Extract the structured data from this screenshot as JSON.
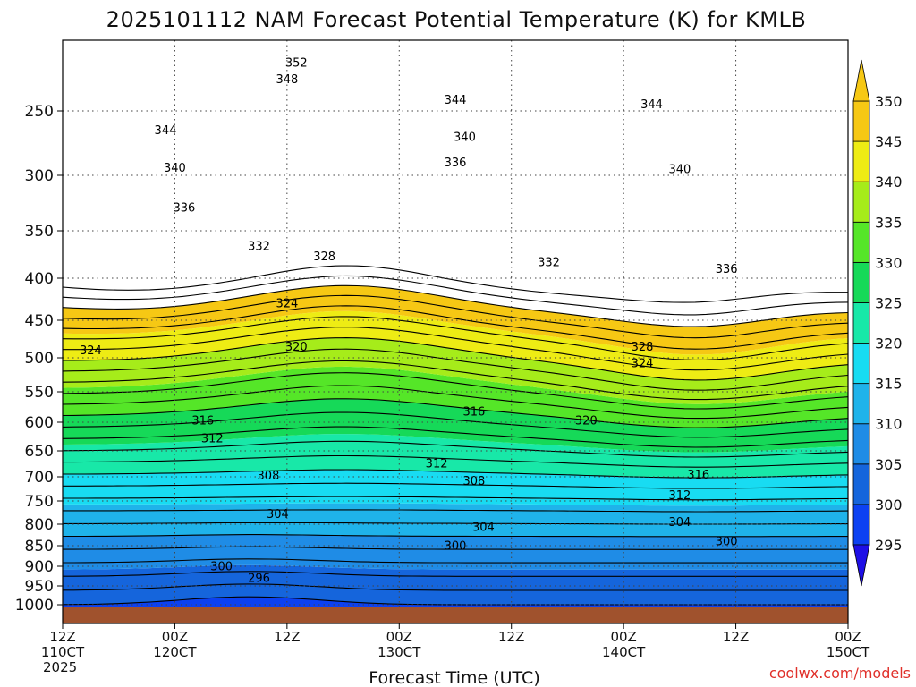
{
  "chart_data": {
    "type": "heatmap",
    "title": "2025101112 NAM Forecast Potential Temperature (K) for KMLB",
    "xlabel": "Forecast Time (UTC)",
    "ylabel": "",
    "credit": "coolwx.com/models",
    "x_ticks": [
      {
        "hours": 0,
        "lines": [
          "12Z",
          "110CT",
          "2025"
        ]
      },
      {
        "hours": 12,
        "lines": [
          "00Z",
          "120CT"
        ]
      },
      {
        "hours": 24,
        "lines": [
          "12Z"
        ]
      },
      {
        "hours": 36,
        "lines": [
          "00Z",
          "130CT"
        ]
      },
      {
        "hours": 48,
        "lines": [
          "12Z"
        ]
      },
      {
        "hours": 60,
        "lines": [
          "00Z",
          "140CT"
        ]
      },
      {
        "hours": 72,
        "lines": [
          "12Z"
        ]
      },
      {
        "hours": 84,
        "lines": [
          "00Z",
          "150CT"
        ]
      }
    ],
    "xlim": [
      0,
      84
    ],
    "y_ticks": [
      250,
      300,
      350,
      400,
      450,
      500,
      550,
      600,
      650,
      700,
      750,
      800,
      850,
      900,
      950,
      1000
    ],
    "ylim": [
      1015,
      200
    ],
    "colorbar": {
      "ticks": [
        295,
        300,
        305,
        310,
        315,
        320,
        325,
        330,
        335,
        340,
        345,
        350
      ],
      "colors": [
        "#1e0fe6",
        "#0c41f2",
        "#1565dc",
        "#1f8ce6",
        "#1fb3ea",
        "#18dcf2",
        "#18e8a8",
        "#16d958",
        "#55e628",
        "#a6ec1a",
        "#eeec14",
        "#f6c814"
      ]
    },
    "contour_labels": [
      {
        "text": "352",
        "hours": 25,
        "hPa": 215
      },
      {
        "text": "348",
        "hours": 24,
        "hPa": 227
      },
      {
        "text": "344",
        "hours": 11,
        "hPa": 265
      },
      {
        "text": "344",
        "hours": 42,
        "hPa": 242
      },
      {
        "text": "344",
        "hours": 63,
        "hPa": 245
      },
      {
        "text": "340",
        "hours": 12,
        "hPa": 294
      },
      {
        "text": "340",
        "hours": 43,
        "hPa": 270
      },
      {
        "text": "340",
        "hours": 66,
        "hPa": 295
      },
      {
        "text": "336",
        "hours": 13,
        "hPa": 329
      },
      {
        "text": "336",
        "hours": 42,
        "hPa": 290
      },
      {
        "text": "336",
        "hours": 71,
        "hPa": 390
      },
      {
        "text": "332",
        "hours": 21,
        "hPa": 366
      },
      {
        "text": "332",
        "hours": 52,
        "hPa": 383
      },
      {
        "text": "328",
        "hours": 28,
        "hPa": 377
      },
      {
        "text": "328",
        "hours": 62,
        "hPa": 485
      },
      {
        "text": "324",
        "hours": 3,
        "hPa": 490
      },
      {
        "text": "324",
        "hours": 24,
        "hPa": 430
      },
      {
        "text": "324",
        "hours": 62,
        "hPa": 508
      },
      {
        "text": "320",
        "hours": 25,
        "hPa": 485
      },
      {
        "text": "320",
        "hours": 56,
        "hPa": 597
      },
      {
        "text": "316",
        "hours": 15,
        "hPa": 597
      },
      {
        "text": "316",
        "hours": 44,
        "hPa": 582
      },
      {
        "text": "316",
        "hours": 68,
        "hPa": 696
      },
      {
        "text": "312",
        "hours": 16,
        "hPa": 628
      },
      {
        "text": "312",
        "hours": 40,
        "hPa": 674
      },
      {
        "text": "312",
        "hours": 66,
        "hPa": 738
      },
      {
        "text": "308",
        "hours": 22,
        "hPa": 697
      },
      {
        "text": "308",
        "hours": 44,
        "hPa": 708
      },
      {
        "text": "304",
        "hours": 23,
        "hPa": 778
      },
      {
        "text": "304",
        "hours": 45,
        "hPa": 806
      },
      {
        "text": "304",
        "hours": 66,
        "hPa": 795
      },
      {
        "text": "300",
        "hours": 42,
        "hPa": 850
      },
      {
        "text": "300",
        "hours": 71,
        "hPa": 840
      },
      {
        "text": "300",
        "hours": 17,
        "hPa": 900
      },
      {
        "text": "296",
        "hours": 21,
        "hPa": 930
      }
    ]
  }
}
